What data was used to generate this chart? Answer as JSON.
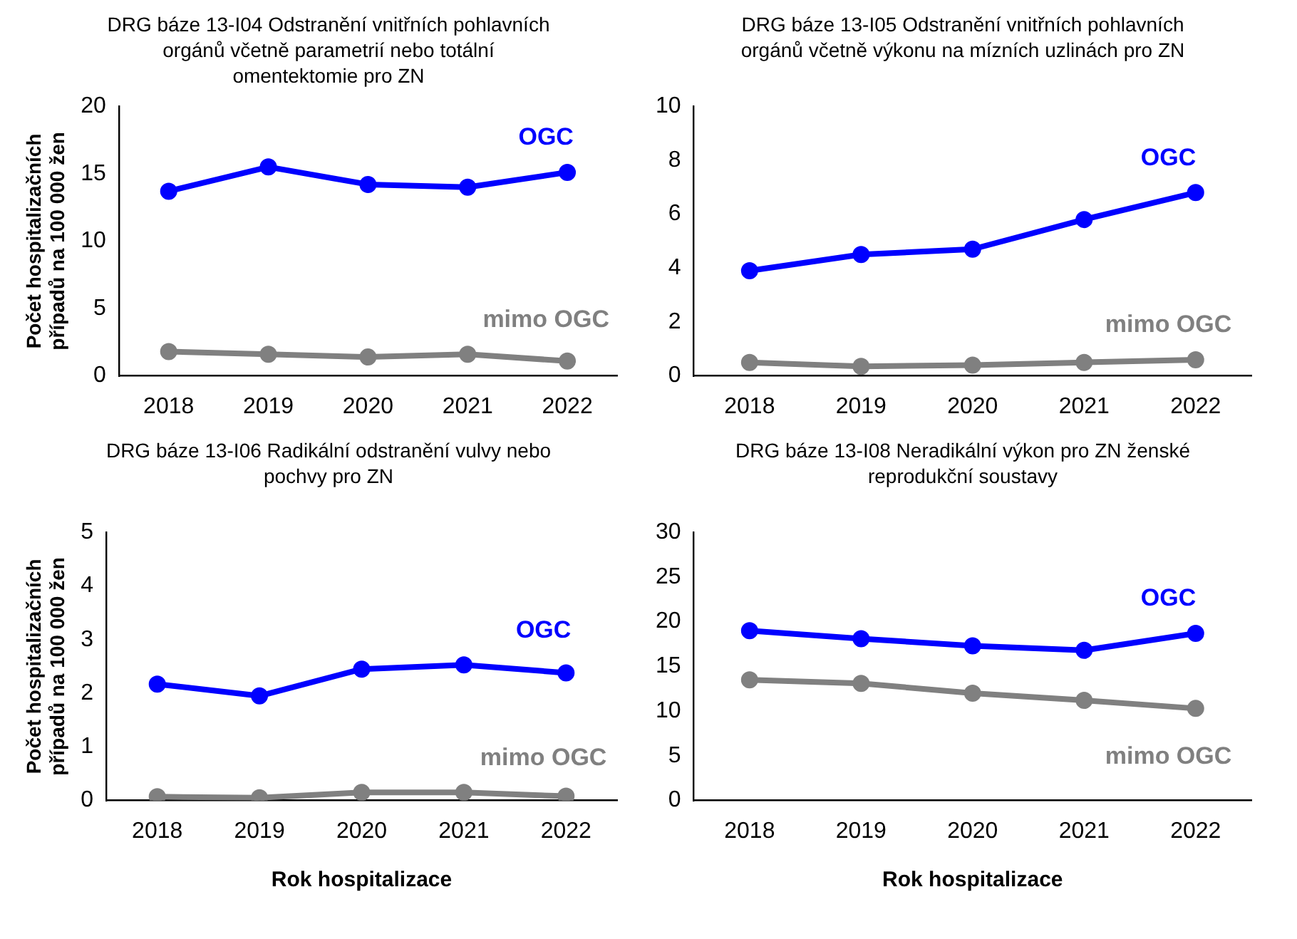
{
  "chart_data": [
    {
      "type": "line",
      "title": "DRG báze 13-I04 Odstranění vnitřních pohlavních orgánů včetně parametrií nebo totální omentektomie pro ZN",
      "ylabel": "Počet hospitalizačních případů na 100 000 žen",
      "categories": [
        "2018",
        "2019",
        "2020",
        "2021",
        "2022"
      ],
      "ylim": [
        0,
        20
      ],
      "yticks": [
        0,
        5,
        10,
        15,
        20
      ],
      "grid": false,
      "legend": false,
      "marker": "circle",
      "series": [
        {
          "name": "OGC",
          "color": "#0000ff",
          "values": [
            13.7,
            15.5,
            14.2,
            14.0,
            15.1
          ]
        },
        {
          "name": "mimo OGC",
          "color": "#808080",
          "values": [
            1.8,
            1.6,
            1.4,
            1.6,
            1.1
          ]
        }
      ]
    },
    {
      "type": "line",
      "title": "DRG báze 13-I05 Odstranění vnitřních pohlavních orgánů včetně výkonu na mízních uzlinách pro ZN",
      "categories": [
        "2018",
        "2019",
        "2020",
        "2021",
        "2022"
      ],
      "ylim": [
        0,
        10
      ],
      "yticks": [
        0,
        2,
        4,
        6,
        8,
        10
      ],
      "grid": false,
      "legend": false,
      "marker": "circle",
      "series": [
        {
          "name": "OGC",
          "color": "#0000ff",
          "values": [
            3.9,
            4.5,
            4.7,
            5.8,
            6.8
          ]
        },
        {
          "name": "mimo OGC",
          "color": "#808080",
          "values": [
            0.5,
            0.35,
            0.4,
            0.5,
            0.6
          ]
        }
      ]
    },
    {
      "type": "line",
      "title": "DRG báze 13-I06 Radikální odstranění vulvy nebo pochvy pro ZN",
      "ylabel": "Počet hospitalizačních případů na 100 000 žen",
      "xlabel": "Rok hospitalizace",
      "categories": [
        "2018",
        "2019",
        "2020",
        "2021",
        "2022"
      ],
      "ylim": [
        0,
        5
      ],
      "yticks": [
        0,
        1,
        2,
        3,
        4,
        5
      ],
      "grid": false,
      "legend": false,
      "marker": "circle",
      "series": [
        {
          "name": "OGC",
          "color": "#0000ff",
          "values": [
            2.17,
            1.95,
            2.45,
            2.53,
            2.38
          ]
        },
        {
          "name": "mimo OGC",
          "color": "#808080",
          "values": [
            0.07,
            0.05,
            0.15,
            0.15,
            0.08
          ]
        }
      ]
    },
    {
      "type": "line",
      "title": "DRG báze 13-I08 Neradikální výkon pro ZN ženské reprodukční soustavy",
      "xlabel": "Rok hospitalizace",
      "categories": [
        "2018",
        "2019",
        "2020",
        "2021",
        "2022"
      ],
      "ylim": [
        0,
        30
      ],
      "yticks": [
        0,
        5,
        10,
        15,
        20,
        25,
        30
      ],
      "grid": false,
      "legend": false,
      "marker": "circle",
      "series": [
        {
          "name": "OGC",
          "color": "#0000ff",
          "values": [
            19.0,
            18.1,
            17.3,
            16.8,
            18.7
          ]
        },
        {
          "name": "mimo OGC",
          "color": "#808080",
          "values": [
            13.5,
            13.1,
            12.0,
            11.2,
            10.3
          ]
        }
      ]
    }
  ]
}
